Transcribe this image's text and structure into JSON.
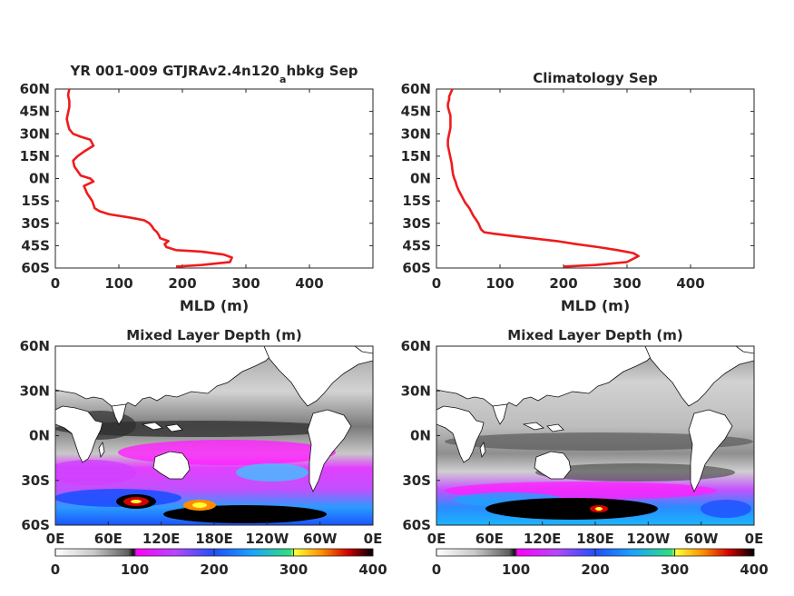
{
  "figure_title": "",
  "colors": {
    "profile_line": "#ee1c1c",
    "axes": "#262626",
    "land": "#ffffff",
    "coast": "#111111"
  },
  "chart_data": [
    {
      "type": "line",
      "title": "YR 001-009 GTJRAv2.4n120",
      "title_sub": "a",
      "title_suffix": "hbkg Sep",
      "xlabel": "MLD (m)",
      "ylabel": "",
      "xlim": [
        0,
        500
      ],
      "ylim": [
        -60,
        60
      ],
      "xticks": [
        "0",
        "100",
        "200",
        "300",
        "400"
      ],
      "yticks": [
        "60N",
        "45N",
        "30N",
        "15N",
        "0N",
        "15S",
        "30S",
        "45S",
        "60S"
      ],
      "series": [
        {
          "x": [
            190,
            230,
            275,
            278,
            265,
            230,
            190,
            175,
            172,
            178,
            165,
            163,
            160,
            155,
            152,
            148,
            140,
            128,
            115,
            100,
            85,
            70,
            62,
            58,
            50,
            45,
            60,
            55,
            40,
            35,
            30,
            28,
            35,
            45,
            60,
            55,
            40,
            28,
            22,
            20,
            18,
            20,
            22,
            22,
            20,
            22
          ],
          "y": [
            -59,
            -58,
            -56,
            -53,
            -51,
            -49,
            -48,
            -46,
            -44,
            -42,
            -40,
            -38,
            -36,
            -34,
            -32,
            -30,
            -28,
            -27,
            -26,
            -25,
            -24,
            -22,
            -20,
            -15,
            -10,
            -5,
            -2,
            0,
            2,
            5,
            8,
            12,
            15,
            18,
            22,
            26,
            28,
            30,
            33,
            36,
            40,
            44,
            48,
            52,
            56,
            60
          ]
        }
      ]
    },
    {
      "type": "line",
      "title": "Climatology Sep",
      "xlabel": "MLD (m)",
      "ylabel": "",
      "xlim": [
        0,
        500
      ],
      "ylim": [
        -60,
        60
      ],
      "xticks": [
        "0",
        "100",
        "200",
        "300",
        "400"
      ],
      "yticks": [
        "60N",
        "45N",
        "30N",
        "15N",
        "0N",
        "15S",
        "30S",
        "45S",
        "60S"
      ],
      "series": [
        {
          "x": [
            200,
            250,
            300,
            318,
            310,
            285,
            255,
            220,
            190,
            150,
            110,
            90,
            75,
            70,
            68,
            66,
            63,
            58,
            52,
            45,
            40,
            35,
            32,
            30,
            28,
            26,
            25,
            24,
            22,
            20,
            18,
            18,
            20,
            22,
            22,
            22,
            20,
            18,
            18,
            20,
            20,
            22,
            24,
            25
          ],
          "y": [
            -59,
            -58,
            -56,
            -52,
            -50,
            -48,
            -46,
            -44,
            -42,
            -40,
            -38,
            -37,
            -36,
            -34,
            -32,
            -30,
            -28,
            -25,
            -20,
            -16,
            -12,
            -8,
            -5,
            -2,
            0,
            3,
            6,
            10,
            14,
            18,
            22,
            26,
            30,
            34,
            38,
            42,
            45,
            48,
            50,
            53,
            55,
            57,
            59,
            60
          ]
        }
      ]
    },
    {
      "type": "heatmap",
      "title": "Mixed Layer Depth (m)",
      "xticks": [
        "0E",
        "60E",
        "120E",
        "180E",
        "120W",
        "60W",
        "0E"
      ],
      "yticks": [
        "60N",
        "30N",
        "0N",
        "30S",
        "60S"
      ],
      "xlim": [
        0,
        360
      ],
      "ylim": [
        -60,
        60
      ],
      "colorbar": {
        "ticks": [
          "0",
          "100",
          "200",
          "300",
          "400"
        ],
        "range": [
          0,
          400
        ]
      }
    },
    {
      "type": "heatmap",
      "title": "Mixed Layer Depth (m)",
      "xticks": [
        "0E",
        "60E",
        "120E",
        "180E",
        "120W",
        "60W",
        "0E"
      ],
      "yticks": [
        "60N",
        "30N",
        "0N",
        "30S",
        "60S"
      ],
      "xlim": [
        0,
        360
      ],
      "ylim": [
        -60,
        60
      ],
      "colorbar": {
        "ticks": [
          "0",
          "100",
          "200",
          "300",
          "400"
        ],
        "range": [
          0,
          400
        ]
      }
    }
  ]
}
